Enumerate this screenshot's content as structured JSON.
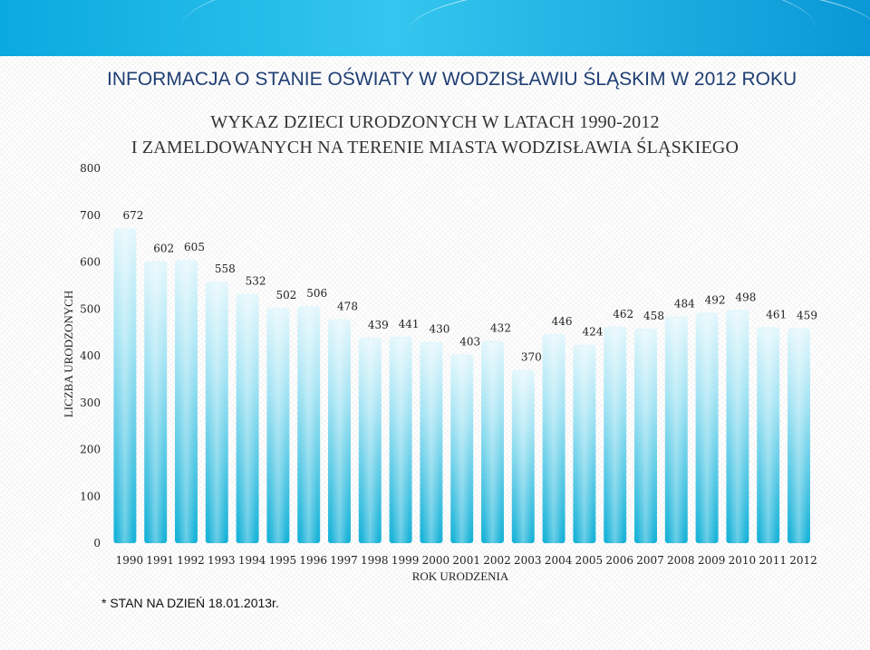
{
  "header": {
    "title": "INFORMACJA O STANIE OŚWIATY W WODZISŁAWIU ŚLĄSKIM W 2012 ROKU"
  },
  "footnote": "* STAN NA DZIEŃ 18.01.2013r.",
  "colors": {
    "band": "#0aa9df",
    "bar_top": "#dff5fb",
    "bar_bottom": "#1bb4d9",
    "header_text": "#1f3e73"
  },
  "chart_data": {
    "type": "bar",
    "title_line1": "WYKAZ DZIECI URODZONYCH W LATACH 1990-2012",
    "title_line2": "I ZAMELDOWANYCH NA TERENIE MIASTA WODZISŁAWIA ŚLĄSKIEGO",
    "xlabel": "ROK URODZENIA",
    "ylabel": "LICZBA URODZONYCH",
    "ylim": [
      0,
      800
    ],
    "yticks": [
      0,
      100,
      200,
      300,
      400,
      500,
      600,
      700,
      800
    ],
    "grid": false,
    "categories": [
      "1990",
      "1991",
      "1992",
      "1993",
      "1994",
      "1995",
      "1996",
      "1997",
      "1998",
      "1999",
      "2000",
      "2001",
      "2002",
      "2003",
      "2004",
      "2005",
      "2006",
      "2007",
      "2008",
      "2009",
      "2010",
      "2011",
      "2012"
    ],
    "values": [
      672,
      602,
      605,
      558,
      532,
      502,
      506,
      478,
      439,
      441,
      430,
      403,
      432,
      370,
      446,
      424,
      462,
      458,
      484,
      492,
      498,
      461,
      459
    ]
  }
}
